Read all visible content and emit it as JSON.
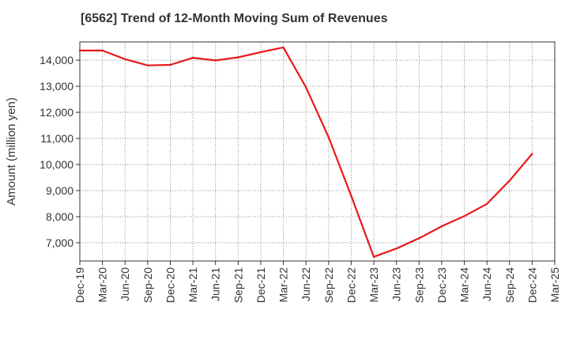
{
  "chart_data": {
    "type": "line",
    "title": "[6562]  Trend of 12-Month Moving Sum of Revenues",
    "xlabel": "",
    "ylabel": "Amount (million yen)",
    "x": [
      "Dec-19",
      "Mar-20",
      "Jun-20",
      "Sep-20",
      "Dec-20",
      "Mar-21",
      "Jun-21",
      "Sep-21",
      "Dec-21",
      "Mar-22",
      "Jun-22",
      "Sep-22",
      "Dec-22",
      "Mar-23",
      "Jun-23",
      "Sep-23",
      "Dec-23",
      "Mar-24",
      "Jun-24",
      "Sep-24",
      "Dec-24",
      "Mar-25"
    ],
    "series": [
      {
        "values": [
          14370,
          14370,
          14040,
          13800,
          13820,
          14090,
          13990,
          14110,
          14310,
          14490,
          12960,
          11050,
          8800,
          6460,
          6780,
          7170,
          7630,
          8020,
          8490,
          9380,
          10410,
          null
        ]
      }
    ],
    "ylim": [
      6300,
      14700
    ],
    "yticks": [
      7000,
      8000,
      9000,
      10000,
      11000,
      12000,
      13000,
      14000
    ],
    "ytick_labels": [
      "7,000",
      "8,000",
      "9,000",
      "10,000",
      "11,000",
      "12,000",
      "13,000",
      "14,000"
    ],
    "grid": true,
    "line_color": "#e8191c"
  }
}
